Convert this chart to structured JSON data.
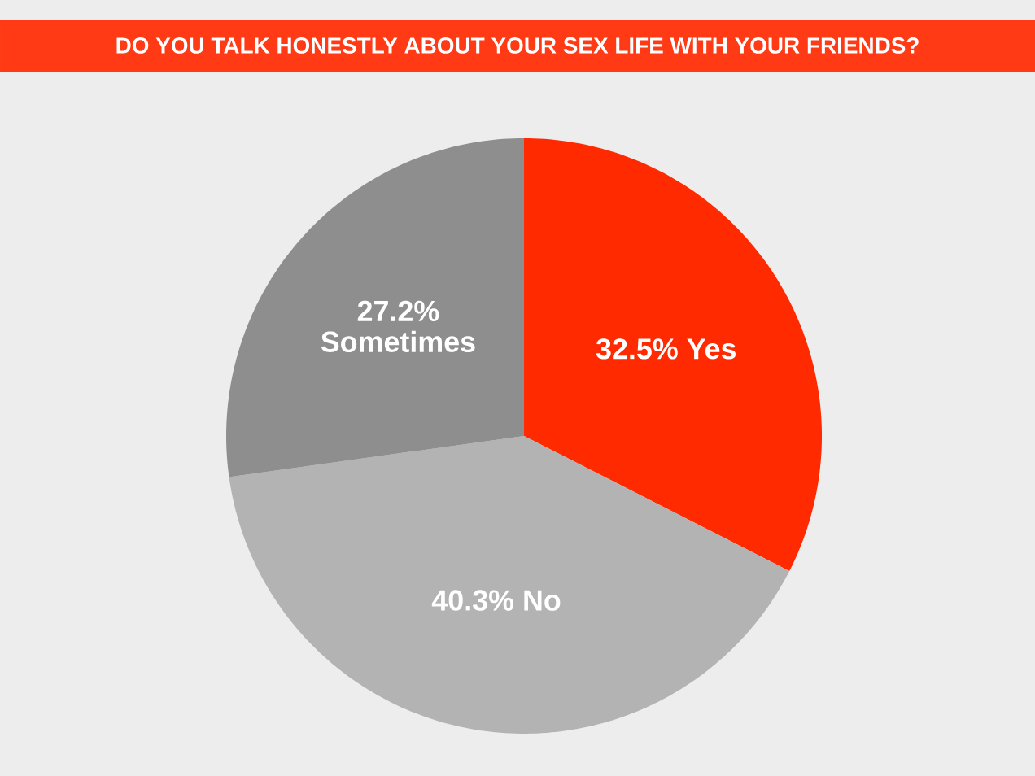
{
  "chart_data": {
    "type": "pie",
    "title": "DO YOU TALK HONESTLY ABOUT YOUR SEX LIFE WITH YOUR FRIENDS?",
    "categories": [
      "Yes",
      "No",
      "Sometimes"
    ],
    "values": [
      32.5,
      40.3,
      27.2
    ],
    "colors": [
      "#ff2a00",
      "#b3b3b3",
      "#8e8e8e"
    ],
    "value_labels": [
      "32.5%",
      "40.3%",
      "27.2%"
    ]
  }
}
